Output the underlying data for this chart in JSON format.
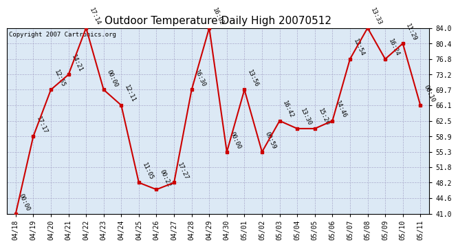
{
  "title": "Outdoor Temperature Daily High 20070512",
  "copyright": "Copyright 2007 Cartronics.org",
  "x_labels": [
    "04/18",
    "04/19",
    "04/20",
    "04/21",
    "04/22",
    "04/23",
    "04/24",
    "04/25",
    "04/26",
    "04/27",
    "04/28",
    "04/29",
    "04/30",
    "05/01",
    "05/02",
    "05/03",
    "05/04",
    "05/05",
    "05/06",
    "05/07",
    "05/08",
    "05/09",
    "05/10",
    "05/11"
  ],
  "y_values": [
    41.0,
    58.9,
    69.7,
    73.2,
    84.0,
    69.7,
    66.1,
    48.2,
    46.6,
    48.2,
    69.7,
    84.0,
    55.3,
    69.7,
    55.3,
    62.5,
    60.7,
    60.7,
    62.5,
    76.8,
    84.0,
    76.8,
    80.4,
    66.1
  ],
  "point_labels": [
    "00:00",
    "17:17",
    "12:55",
    "14:21",
    "17:14",
    "00:00",
    "12:11",
    "11:05",
    "00:22",
    "17:27",
    "16:30",
    "16:02",
    "00:00",
    "13:56",
    "09:59",
    "16:42",
    "13:30",
    "15:20",
    "14:46",
    "12:54",
    "13:33",
    "16:24",
    "11:29",
    "00:10"
  ],
  "ylim": [
    41.0,
    84.0
  ],
  "y_ticks": [
    41.0,
    44.6,
    48.2,
    51.8,
    55.3,
    58.9,
    62.5,
    66.1,
    69.7,
    73.2,
    76.8,
    80.4,
    84.0
  ],
  "line_color": "#cc0000",
  "marker_color": "#cc0000",
  "bg_color": "#ffffff",
  "plot_bg_color": "#dce9f5",
  "grid_color": "#aaaacc",
  "title_fontsize": 11,
  "tick_fontsize": 7,
  "label_fontsize": 6.5,
  "copyright_fontsize": 6.5
}
